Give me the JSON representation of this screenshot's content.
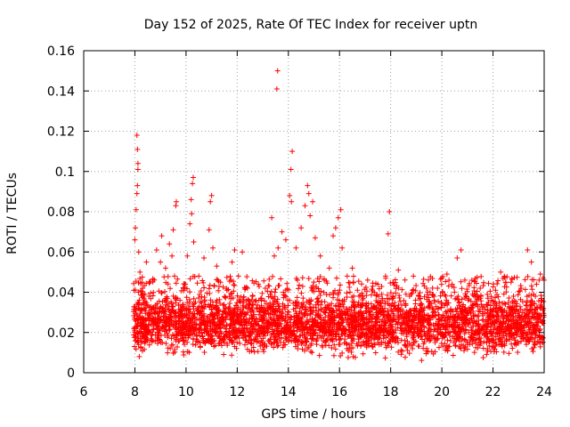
{
  "chart_data": {
    "type": "scatter",
    "title": "Day 152 of 2025, Rate Of TEC Index for receiver uptn",
    "xlabel": "GPS time / hours",
    "ylabel": "ROTI / TECUs",
    "xlim": [
      6,
      24
    ],
    "ylim": [
      0,
      0.16
    ],
    "xticks": [
      6,
      8,
      10,
      12,
      14,
      16,
      18,
      20,
      22,
      24
    ],
    "yticks": [
      0,
      0.02,
      0.04,
      0.06,
      0.08,
      0.1,
      0.12,
      0.14,
      0.16
    ],
    "xtick_labels": [
      "6",
      "8",
      "10",
      "12",
      "14",
      "16",
      "18",
      "20",
      "22",
      "24"
    ],
    "ytick_labels": [
      "0",
      "0.02",
      "0.04",
      "0.06",
      "0.08",
      "0.1",
      "0.12",
      "0.14",
      "0.16"
    ],
    "grid": true,
    "marker": "+",
    "color": "#ff0000",
    "series": [
      {
        "name": "ROTI",
        "points": [
          [
            8.0,
            0.066
          ],
          [
            8.02,
            0.072
          ],
          [
            8.05,
            0.081
          ],
          [
            8.08,
            0.089
          ],
          [
            8.1,
            0.093
          ],
          [
            8.12,
            0.101
          ],
          [
            8.12,
            0.104
          ],
          [
            8.1,
            0.111
          ],
          [
            8.08,
            0.118
          ],
          [
            8.15,
            0.06
          ],
          [
            8.2,
            0.05
          ],
          [
            8.3,
            0.042
          ],
          [
            8.45,
            0.055
          ],
          [
            8.55,
            0.038
          ],
          [
            8.7,
            0.046
          ],
          [
            8.85,
            0.061
          ],
          [
            9.0,
            0.055
          ],
          [
            9.05,
            0.068
          ],
          [
            9.2,
            0.052
          ],
          [
            9.35,
            0.064
          ],
          [
            9.45,
            0.058
          ],
          [
            9.55,
            0.048
          ],
          [
            9.6,
            0.083
          ],
          [
            9.62,
            0.085
          ],
          [
            9.5,
            0.071
          ],
          [
            9.9,
            0.042
          ],
          [
            10.05,
            0.058
          ],
          [
            10.15,
            0.074
          ],
          [
            10.2,
            0.086
          ],
          [
            10.25,
            0.094
          ],
          [
            10.28,
            0.097
          ],
          [
            10.22,
            0.079
          ],
          [
            10.3,
            0.065
          ],
          [
            10.5,
            0.048
          ],
          [
            10.7,
            0.057
          ],
          [
            10.9,
            0.071
          ],
          [
            10.95,
            0.085
          ],
          [
            11.0,
            0.088
          ],
          [
            11.05,
            0.062
          ],
          [
            11.2,
            0.053
          ],
          [
            11.35,
            0.045
          ],
          [
            11.6,
            0.041
          ],
          [
            11.8,
            0.055
          ],
          [
            11.9,
            0.061
          ],
          [
            12.05,
            0.048
          ],
          [
            12.2,
            0.06
          ],
          [
            12.4,
            0.042
          ],
          [
            12.6,
            0.038
          ],
          [
            12.85,
            0.036
          ],
          [
            13.1,
            0.042
          ],
          [
            13.35,
            0.077
          ],
          [
            13.45,
            0.058
          ],
          [
            13.55,
            0.141
          ],
          [
            13.58,
            0.15
          ],
          [
            13.6,
            0.062
          ],
          [
            13.75,
            0.07
          ],
          [
            13.9,
            0.066
          ],
          [
            14.05,
            0.088
          ],
          [
            14.1,
            0.101
          ],
          [
            14.15,
            0.11
          ],
          [
            14.12,
            0.085
          ],
          [
            14.3,
            0.062
          ],
          [
            14.5,
            0.072
          ],
          [
            14.65,
            0.083
          ],
          [
            14.75,
            0.093
          ],
          [
            14.8,
            0.089
          ],
          [
            14.85,
            0.078
          ],
          [
            14.95,
            0.085
          ],
          [
            15.05,
            0.067
          ],
          [
            15.25,
            0.058
          ],
          [
            15.4,
            0.046
          ],
          [
            15.6,
            0.052
          ],
          [
            15.75,
            0.068
          ],
          [
            15.85,
            0.072
          ],
          [
            15.95,
            0.077
          ],
          [
            16.05,
            0.081
          ],
          [
            16.1,
            0.062
          ],
          [
            16.3,
            0.048
          ],
          [
            16.5,
            0.052
          ],
          [
            16.7,
            0.041
          ],
          [
            16.9,
            0.038
          ],
          [
            17.1,
            0.046
          ],
          [
            17.3,
            0.043
          ],
          [
            17.5,
            0.044
          ],
          [
            17.65,
            0.039
          ],
          [
            17.8,
            0.048
          ],
          [
            17.9,
            0.069
          ],
          [
            17.95,
            0.08
          ],
          [
            18.1,
            0.037
          ],
          [
            18.3,
            0.051
          ],
          [
            18.6,
            0.039
          ],
          [
            18.85,
            0.041
          ],
          [
            19.1,
            0.038
          ],
          [
            19.4,
            0.042
          ],
          [
            19.7,
            0.036
          ],
          [
            20.0,
            0.047
          ],
          [
            20.2,
            0.049
          ],
          [
            20.4,
            0.044
          ],
          [
            20.6,
            0.057
          ],
          [
            20.75,
            0.061
          ],
          [
            20.9,
            0.046
          ],
          [
            21.2,
            0.039
          ],
          [
            21.5,
            0.042
          ],
          [
            21.8,
            0.037
          ],
          [
            22.1,
            0.041
          ],
          [
            22.3,
            0.05
          ],
          [
            22.5,
            0.045
          ],
          [
            22.8,
            0.038
          ],
          [
            23.1,
            0.042
          ],
          [
            23.35,
            0.061
          ],
          [
            23.5,
            0.055
          ],
          [
            23.7,
            0.044
          ],
          [
            23.85,
            0.049
          ],
          [
            24.0,
            0.046
          ]
        ],
        "dense_band": {
          "x_range": [
            7.95,
            24.0
          ],
          "typical_range": [
            0.005,
            0.035
          ]
        }
      }
    ]
  }
}
